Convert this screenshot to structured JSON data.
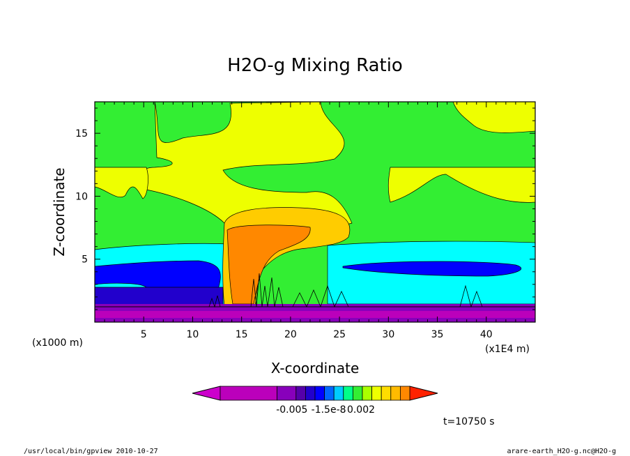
{
  "chart_data": {
    "type": "heatmap",
    "title": "H2O-g Mixing Ratio",
    "xlabel": "X-coordinate",
    "ylabel": "Z-coordinate",
    "x_unit": "(x1E4 m)",
    "y_unit": "(x1000 m)",
    "xlim": [
      0,
      45
    ],
    "ylim": [
      0,
      17.5
    ],
    "x_ticks": [
      5,
      10,
      15,
      20,
      25,
      30,
      35,
      40
    ],
    "y_ticks": [
      5,
      10,
      15
    ],
    "x_tick_labels": [
      "5",
      "10",
      "15",
      "20",
      "25",
      "30",
      "35",
      "40"
    ],
    "y_tick_labels": [
      "5",
      "10",
      "15"
    ],
    "colorbar": {
      "colors": [
        "#cc00cc",
        "#bb00bb",
        "#8800bb",
        "#5500aa",
        "#2200cc",
        "#0000ff",
        "#0066ff",
        "#00ccff",
        "#00ff88",
        "#33ee33",
        "#aaff00",
        "#eeff00",
        "#ffdd00",
        "#ffbb00",
        "#ff8800",
        "#ff2200"
      ],
      "labels": [
        "-0.005",
        "-1.5e-8",
        "0.002"
      ]
    },
    "time_label": "t=10750 s",
    "legend": "bottom-center colorbar"
  },
  "footer": {
    "left": "/usr/local/bin/gpview  2010-10-27",
    "right": "arare-earth_H2O-g.nc@H2O-g"
  }
}
